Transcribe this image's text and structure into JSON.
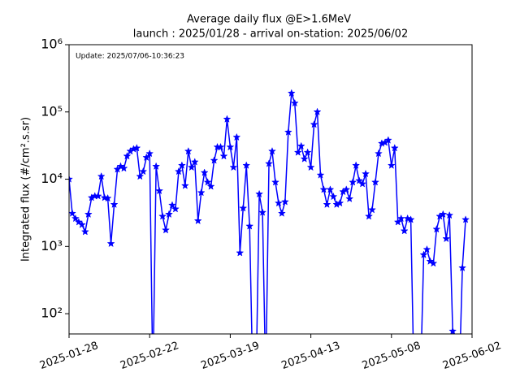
{
  "chart_data": {
    "type": "line",
    "title": "Average daily flux @E>1.6MeV",
    "subtitle": "launch : 2025/01/28 - arrival on-station: 2025/06/02",
    "annotation": "Update: 2025/07/06-10:36:23",
    "y_label": "Integrated flux (#/cm².s.sr)",
    "log_y": true,
    "x": [
      "2025-01-28",
      "2025-01-29",
      "2025-01-30",
      "2025-01-31",
      "2025-02-01",
      "2025-02-02",
      "2025-02-03",
      "2025-02-04",
      "2025-02-05",
      "2025-02-06",
      "2025-02-07",
      "2025-02-08",
      "2025-02-09",
      "2025-02-10",
      "2025-02-11",
      "2025-02-12",
      "2025-02-13",
      "2025-02-14",
      "2025-02-15",
      "2025-02-16",
      "2025-02-17",
      "2025-02-18",
      "2025-02-19",
      "2025-02-20",
      "2025-02-21",
      "2025-02-22",
      "2025-02-23",
      "2025-02-24",
      "2025-02-25",
      "2025-02-26",
      "2025-02-27",
      "2025-02-28",
      "2025-03-01",
      "2025-03-02",
      "2025-03-03",
      "2025-03-04",
      "2025-03-05",
      "2025-03-06",
      "2025-03-07",
      "2025-03-08",
      "2025-03-09",
      "2025-03-10",
      "2025-03-11",
      "2025-03-12",
      "2025-03-13",
      "2025-03-14",
      "2025-03-15",
      "2025-03-16",
      "2025-03-17",
      "2025-03-18",
      "2025-03-19",
      "2025-03-20",
      "2025-03-21",
      "2025-03-22",
      "2025-03-23",
      "2025-03-24",
      "2025-03-25",
      "2025-03-26",
      "2025-03-27",
      "2025-03-28",
      "2025-03-29",
      "2025-03-30",
      "2025-03-31",
      "2025-04-01",
      "2025-04-02",
      "2025-04-03",
      "2025-04-04",
      "2025-04-05",
      "2025-04-06",
      "2025-04-07",
      "2025-04-08",
      "2025-04-09",
      "2025-04-10",
      "2025-04-11",
      "2025-04-12",
      "2025-04-13",
      "2025-04-14",
      "2025-04-15",
      "2025-04-16",
      "2025-04-17",
      "2025-04-18",
      "2025-04-19",
      "2025-04-20",
      "2025-04-21",
      "2025-04-22",
      "2025-04-23",
      "2025-04-24",
      "2025-04-25",
      "2025-04-26",
      "2025-04-27",
      "2025-04-28",
      "2025-04-29",
      "2025-04-30",
      "2025-05-01",
      "2025-05-02",
      "2025-05-03",
      "2025-05-04",
      "2025-05-05",
      "2025-05-06",
      "2025-05-07",
      "2025-05-08",
      "2025-05-09",
      "2025-05-10",
      "2025-05-11",
      "2025-05-12",
      "2025-05-13",
      "2025-05-14",
      "2025-05-15",
      "2025-05-16",
      "2025-05-17",
      "2025-05-18",
      "2025-05-19",
      "2025-05-20",
      "2025-05-21",
      "2025-05-22",
      "2025-05-23",
      "2025-05-24",
      "2025-05-25",
      "2025-05-26",
      "2025-05-27",
      "2025-05-28",
      "2025-05-29",
      "2025-05-30",
      "2025-05-31"
    ],
    "series": [
      {
        "color": "#0000ff",
        "values": [
          10000,
          3100,
          2600,
          2300,
          2100,
          1650,
          3000,
          5300,
          5600,
          5600,
          11000,
          5300,
          5200,
          1100,
          4200,
          14000,
          15500,
          14500,
          22000,
          26000,
          28000,
          29000,
          11000,
          13000,
          21000,
          24000,
          0,
          15500,
          6700,
          2800,
          1750,
          3000,
          4100,
          3600,
          13000,
          16000,
          8000,
          26000,
          15000,
          18000,
          2400,
          6300,
          12500,
          9000,
          7800,
          19000,
          30000,
          30000,
          22000,
          78000,
          30000,
          15000,
          42000,
          800,
          3700,
          16000,
          2000,
          0,
          0,
          6000,
          3200,
          0,
          17000,
          26000,
          9000,
          4400,
          3100,
          4600,
          50000,
          190000,
          135000,
          25000,
          31000,
          20000,
          25000,
          15000,
          65000,
          100000,
          11500,
          7000,
          4200,
          7000,
          5500,
          4200,
          4400,
          6500,
          7000,
          5100,
          9000,
          16000,
          9500,
          8500,
          12000,
          2800,
          3500,
          9000,
          24000,
          34000,
          35000,
          38000,
          16000,
          29000,
          2300,
          2600,
          1700,
          2600,
          2500,
          0,
          0,
          0,
          750,
          900,
          600,
          560,
          1800,
          2800,
          3000,
          1300,
          2900,
          55,
          0,
          0,
          480,
          2500
        ]
      }
    ],
    "xlim": [
      "2025-01-28",
      "2025-06-02"
    ],
    "xticks": [
      "2025-01-28",
      "2025-02-22",
      "2025-03-19",
      "2025-04-13",
      "2025-05-08",
      "2025-06-02"
    ],
    "ylim": [
      50,
      1000000
    ],
    "yticks": [
      {
        "value": 100,
        "label": "10²"
      },
      {
        "value": 1000,
        "label": "10³"
      },
      {
        "value": 10000,
        "label": "10⁴"
      },
      {
        "value": 100000,
        "label": "10⁵"
      },
      {
        "value": 1000000,
        "label": "10⁶"
      }
    ]
  }
}
